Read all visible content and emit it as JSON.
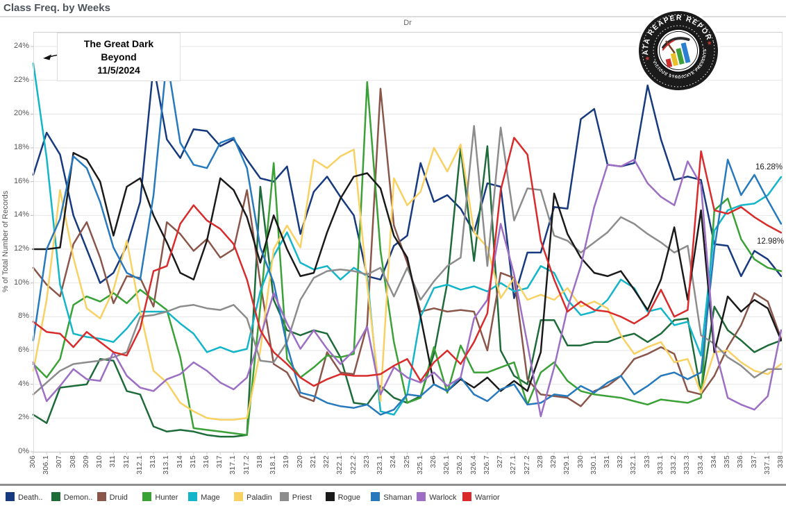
{
  "window": {
    "title": "Class Freq. by Weeks"
  },
  "header": {
    "pane_label": "Dr"
  },
  "annotation": {
    "lines": [
      "The Great Dark",
      "Beyond",
      "11/5/2024"
    ]
  },
  "callouts": {
    "mage_end": "16.28%",
    "warrior_end": "12.98%"
  },
  "logo": {
    "arc_top": "DATA REAPER REPORT",
    "arc_bottom": "VICIOUS SYNDICATE PRESENTS"
  },
  "y_axis_title": "% of Total Number of Records",
  "chart_data": {
    "type": "line",
    "title": "Class Freq. by Weeks",
    "xlabel": "",
    "ylabel": "% of Total Number of Records",
    "ylim": [
      0,
      24
    ],
    "grid": true,
    "legend_position": "bottom",
    "y_ticks": [
      "0%",
      "2%",
      "4%",
      "6%",
      "8%",
      "10%",
      "12%",
      "14%",
      "16%",
      "18%",
      "20%",
      "22%",
      "24%"
    ],
    "categories": [
      "306",
      "306.1",
      "307",
      "308",
      "309",
      "310",
      "311",
      "312",
      "312.1",
      "313",
      "313.1",
      "314",
      "315",
      "316",
      "317",
      "317.1",
      "317.2",
      "318",
      "318.1",
      "319",
      "320",
      "321",
      "322",
      "322.1",
      "322.2",
      "323",
      "323.1",
      "324",
      "325",
      "325.1",
      "326",
      "326.1",
      "326.2",
      "326.4",
      "326.7",
      "327",
      "327.1",
      "327.2",
      "328",
      "329",
      "329.1",
      "330",
      "330.1",
      "331",
      "332",
      "332.1",
      "333",
      "333.1",
      "333.2",
      "333.3",
      "333.4",
      "334",
      "335",
      "336",
      "337",
      "337.1",
      "338"
    ],
    "series": [
      {
        "name": "Death Knight",
        "legend_label": "Death..",
        "color": "#16397f",
        "values": [
          16.4,
          18.9,
          17.6,
          14.0,
          12.0,
          10.0,
          10.6,
          12.2,
          14.8,
          22.9,
          18.5,
          17.4,
          19.1,
          19.0,
          18.1,
          18.5,
          17.3,
          16.2,
          16.0,
          16.9,
          12.9,
          15.4,
          16.3,
          15.1,
          14.0,
          10.4,
          10.2,
          12.2,
          12.8,
          17.1,
          14.8,
          15.2,
          14.4,
          13.0,
          15.9,
          15.7,
          9.1,
          11.8,
          11.8,
          14.5,
          14.4,
          19.7,
          20.3,
          17.0,
          16.9,
          17.1,
          21.7,
          18.5,
          16.1,
          16.3,
          16.1,
          12.3,
          12.2,
          10.4,
          11.9,
          11.4,
          10.4
        ]
      },
      {
        "name": "Demon Hunter",
        "legend_label": "Demon..",
        "color": "#1e6b3a",
        "values": [
          2.2,
          1.7,
          3.8,
          3.9,
          4.0,
          5.5,
          5.4,
          3.6,
          3.4,
          1.5,
          1.2,
          1.3,
          1.2,
          1.0,
          0.9,
          0.9,
          1.0,
          15.7,
          9.0,
          7.2,
          6.9,
          7.2,
          7.0,
          5.6,
          2.9,
          2.8,
          3.9,
          3.2,
          2.9,
          3.3,
          5.8,
          10.0,
          18.0,
          11.3,
          18.1,
          6.0,
          4.5,
          4.0,
          7.8,
          7.8,
          6.3,
          6.3,
          6.5,
          6.5,
          6.8,
          7.0,
          6.5,
          7.0,
          7.8,
          7.9,
          3.5,
          8.6,
          7.2,
          6.6,
          5.9,
          6.3,
          6.6
        ]
      },
      {
        "name": "Druid",
        "legend_label": "Druid",
        "color": "#8a564a",
        "values": [
          10.9,
          9.9,
          9.2,
          12.3,
          13.6,
          11.5,
          8.8,
          10.4,
          10.3,
          8.6,
          13.6,
          12.9,
          11.9,
          12.6,
          11.5,
          12.0,
          15.5,
          10.0,
          5.2,
          4.7,
          3.3,
          3.0,
          5.9,
          4.7,
          4.6,
          7.5,
          21.5,
          13.4,
          11.2,
          8.3,
          8.5,
          8.3,
          8.4,
          8.3,
          6.0,
          10.6,
          10.3,
          4.3,
          3.4,
          3.3,
          3.2,
          2.7,
          3.6,
          3.9,
          4.5,
          5.5,
          5.8,
          6.2,
          5.8,
          3.6,
          3.4,
          4.5,
          6.2,
          7.5,
          9.4,
          8.9,
          6.7
        ]
      },
      {
        "name": "Hunter",
        "legend_label": "Hunter",
        "color": "#39a135",
        "values": [
          5.2,
          4.4,
          5.5,
          8.7,
          9.2,
          8.9,
          9.4,
          8.8,
          9.6,
          9.0,
          8.4,
          5.6,
          1.4,
          1.3,
          1.2,
          1.1,
          1.0,
          8.6,
          17.1,
          5.5,
          4.4,
          5.0,
          5.7,
          5.6,
          5.8,
          21.9,
          11.9,
          6.5,
          2.9,
          3.2,
          6.2,
          3.5,
          6.3,
          4.7,
          4.7,
          5.0,
          5.3,
          2.8,
          4.7,
          5.3,
          4.2,
          3.6,
          3.4,
          3.3,
          3.2,
          3.0,
          2.8,
          3.1,
          3.0,
          2.9,
          3.2,
          14.3,
          15.0,
          12.6,
          11.4,
          10.9,
          10.7
        ]
      },
      {
        "name": "Mage",
        "legend_label": "Mage",
        "color": "#13b5c8",
        "values": [
          23.0,
          17.4,
          9.9,
          7.0,
          6.8,
          6.7,
          6.5,
          7.3,
          8.3,
          8.3,
          8.3,
          7.6,
          7.0,
          5.9,
          6.2,
          5.9,
          6.1,
          9.5,
          11.6,
          13.0,
          11.2,
          10.8,
          11.0,
          10.2,
          10.9,
          10.4,
          2.4,
          2.2,
          3.4,
          8.0,
          9.7,
          9.9,
          9.6,
          9.8,
          9.5,
          10.0,
          9.5,
          9.7,
          11.0,
          10.6,
          9.0,
          8.1,
          8.3,
          9.0,
          10.2,
          9.7,
          8.3,
          8.5,
          7.5,
          7.7,
          5.7,
          13.1,
          14.3,
          14.6,
          14.7,
          15.2,
          16.28
        ]
      },
      {
        "name": "Paladin",
        "legend_label": "Paladin",
        "color": "#f9d162",
        "values": [
          4.8,
          9.0,
          15.5,
          11.5,
          8.5,
          7.9,
          9.6,
          12.5,
          8.3,
          4.8,
          4.1,
          2.9,
          2.4,
          2.0,
          1.9,
          1.9,
          2.0,
          6.0,
          12.0,
          13.4,
          12.1,
          17.3,
          16.8,
          17.5,
          17.9,
          9.9,
          3.0,
          16.2,
          14.6,
          15.4,
          18.0,
          16.6,
          18.2,
          13.0,
          12.1,
          9.1,
          10.3,
          9.0,
          9.3,
          9.0,
          9.7,
          8.6,
          8.9,
          8.5,
          6.9,
          5.8,
          6.2,
          6.5,
          5.3,
          5.5,
          3.5,
          5.9,
          6.0,
          5.3,
          4.8,
          4.6,
          5.2
        ]
      },
      {
        "name": "Priest",
        "legend_label": "Priest",
        "color": "#8c8c8c",
        "values": [
          3.4,
          4.1,
          4.8,
          5.2,
          5.3,
          5.4,
          5.6,
          5.9,
          8.0,
          8.1,
          8.3,
          8.6,
          8.7,
          8.5,
          8.4,
          8.7,
          7.9,
          5.4,
          5.3,
          6.5,
          9.0,
          10.3,
          10.7,
          10.8,
          10.7,
          10.5,
          10.9,
          9.2,
          10.9,
          9.0,
          10.1,
          11.0,
          11.5,
          19.3,
          11.0,
          19.2,
          13.7,
          15.6,
          15.5,
          12.8,
          12.5,
          11.8,
          12.4,
          13.0,
          13.9,
          13.5,
          12.9,
          12.4,
          11.8,
          12.2,
          6.9,
          6.4,
          5.6,
          5.1,
          4.4,
          4.9,
          4.9
        ]
      },
      {
        "name": "Rogue",
        "legend_label": "Rogue",
        "color": "#1a1a1a",
        "values": [
          12.0,
          12.0,
          12.1,
          17.7,
          17.3,
          16.0,
          12.8,
          15.7,
          16.2,
          14.0,
          12.4,
          10.6,
          10.2,
          12.5,
          16.2,
          15.5,
          13.9,
          11.2,
          14.0,
          12.0,
          10.4,
          10.6,
          13.0,
          15.0,
          16.3,
          16.5,
          15.6,
          12.8,
          11.5,
          8.0,
          4.0,
          3.6,
          4.3,
          3.8,
          4.4,
          3.6,
          4.2,
          3.6,
          5.9,
          15.3,
          12.9,
          11.5,
          10.6,
          10.4,
          10.7,
          9.6,
          8.4,
          10.2,
          13.3,
          9.0,
          14.3,
          5.9,
          9.2,
          8.3,
          9.0,
          8.5,
          6.6
        ]
      },
      {
        "name": "Shaman",
        "legend_label": "Shaman",
        "color": "#2779bd",
        "values": [
          6.6,
          12.0,
          13.8,
          17.5,
          16.8,
          14.8,
          12.1,
          10.6,
          10.2,
          15.2,
          23.3,
          18.3,
          17.0,
          16.8,
          18.3,
          18.6,
          16.8,
          12.1,
          10.0,
          6.3,
          3.5,
          3.3,
          2.9,
          2.7,
          2.6,
          2.8,
          2.2,
          2.5,
          3.4,
          3.3,
          4.0,
          3.6,
          4.4,
          3.4,
          3.0,
          3.7,
          4.0,
          2.8,
          2.9,
          3.4,
          3.3,
          3.9,
          3.5,
          4.1,
          4.5,
          3.4,
          3.9,
          4.5,
          4.7,
          4.3,
          4.7,
          12.0,
          17.3,
          15.2,
          16.4,
          14.9,
          13.5
        ]
      },
      {
        "name": "Warlock",
        "legend_label": "Warlock",
        "color": "#9c6ec4",
        "values": [
          5.3,
          3.0,
          3.9,
          4.9,
          4.3,
          4.2,
          5.9,
          4.5,
          3.8,
          3.6,
          4.3,
          4.6,
          5.3,
          4.8,
          4.1,
          3.7,
          4.4,
          6.8,
          9.4,
          7.6,
          6.1,
          7.2,
          6.1,
          5.2,
          6.0,
          7.4,
          3.4,
          5.0,
          4.4,
          4.1,
          4.7,
          3.9,
          4.4,
          7.9,
          9.0,
          13.5,
          10.5,
          6.4,
          2.1,
          5.0,
          8.5,
          11.0,
          14.5,
          17.0,
          16.9,
          17.3,
          15.9,
          15.1,
          14.6,
          17.2,
          15.8,
          6.3,
          3.2,
          2.8,
          2.5,
          3.3,
          7.2
        ]
      },
      {
        "name": "Warrior",
        "legend_label": "Warrior",
        "color": "#d92b2b",
        "values": [
          7.7,
          7.1,
          7.0,
          6.2,
          7.1,
          6.5,
          5.9,
          5.7,
          7.3,
          10.7,
          11.0,
          13.5,
          14.6,
          13.7,
          13.2,
          12.3,
          10.2,
          7.2,
          5.9,
          5.2,
          4.4,
          3.9,
          4.3,
          4.6,
          4.5,
          4.5,
          4.6,
          5.1,
          5.5,
          4.2,
          5.3,
          6.0,
          5.2,
          6.5,
          8.2,
          15.5,
          18.6,
          17.6,
          12.5,
          10.2,
          8.3,
          8.9,
          8.4,
          8.3,
          8.0,
          7.6,
          8.1,
          9.6,
          8.0,
          8.4,
          17.8,
          14.3,
          14.1,
          14.5,
          13.9,
          13.4,
          12.98
        ]
      }
    ]
  }
}
